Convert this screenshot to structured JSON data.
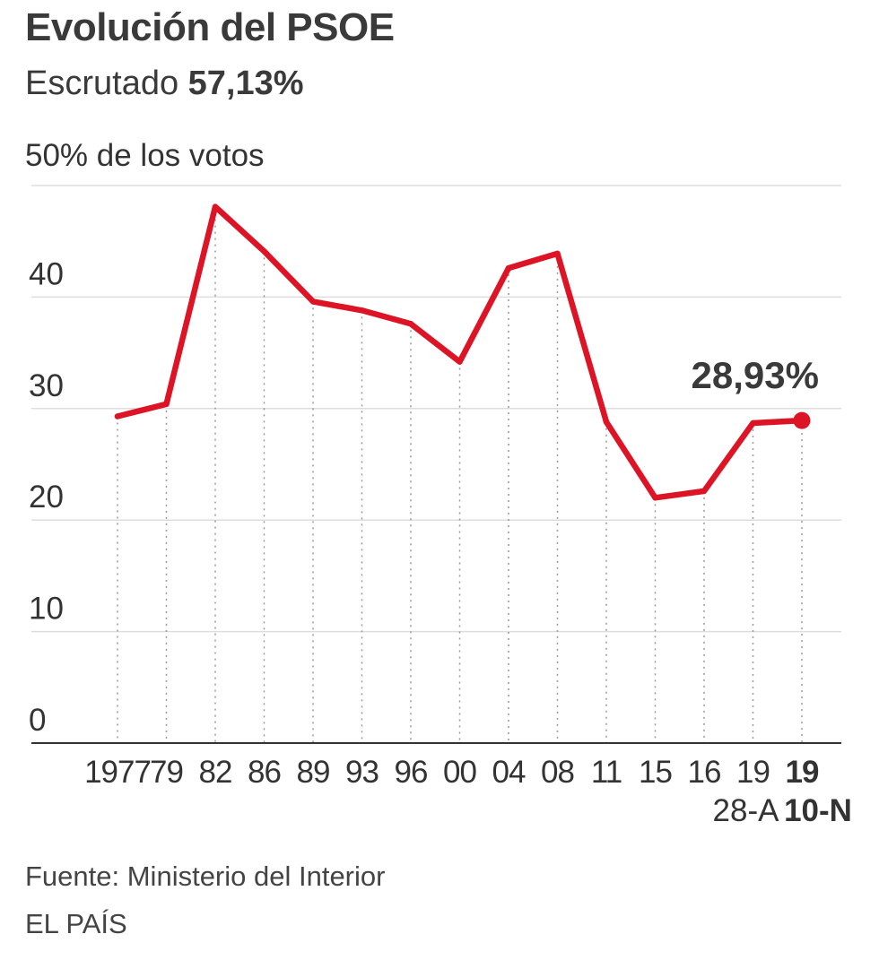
{
  "header": {
    "title": "Evolución del PSOE",
    "subtitle_label": "Escrutado",
    "subtitle_value": "57,13%"
  },
  "footer": {
    "source": "Fuente: Ministerio del Interior",
    "brand": "EL PAÍS"
  },
  "colors": {
    "line": "#dd1425",
    "grid": "#dddddd",
    "axis": "#333333",
    "text": "#333333"
  },
  "chart_data": {
    "type": "line",
    "title": "Evolución del PSOE",
    "ylabel": "50% de los votos",
    "ylim": [
      0,
      50
    ],
    "yticks": [
      0,
      10,
      20,
      30,
      40
    ],
    "categories": [
      "1977",
      "79",
      "82",
      "86",
      "89",
      "93",
      "96",
      "00",
      "04",
      "08",
      "11",
      "15",
      "16",
      "19",
      "19"
    ],
    "category_sublabels": [
      "",
      "",
      "",
      "",
      "",
      "",
      "",
      "",
      "",
      "",
      "",
      "",
      "",
      "28-A",
      "10-N"
    ],
    "bold_category_index": 14,
    "series": [
      {
        "name": "PSOE",
        "values": [
          29.3,
          30.4,
          48.1,
          44.1,
          39.6,
          38.8,
          37.6,
          34.2,
          42.6,
          43.9,
          28.8,
          22.0,
          22.6,
          28.7,
          28.93
        ]
      }
    ],
    "annotation": {
      "text": "28,93%",
      "point_index": 14
    }
  }
}
